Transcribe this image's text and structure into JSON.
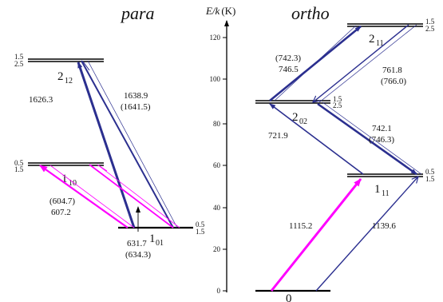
{
  "titles": {
    "para": "para",
    "ortho": "ortho"
  },
  "axis": {
    "label_main": "E/k",
    "label_unit": "(K)",
    "ticks": [
      "0",
      "20",
      "40",
      "60",
      "80",
      "100",
      "120"
    ]
  },
  "levels": {
    "para_101": {
      "main": "1",
      "sub": "01",
      "fine_top": "0.5",
      "fine_bottom": "1.5"
    },
    "para_110": {
      "main": "1",
      "sub": "10",
      "fine_top": "0.5",
      "fine_bottom": "1.5"
    },
    "para_212": {
      "main": "2",
      "sub": "12",
      "fine_top": "1.5",
      "fine_bottom": "2.5"
    },
    "ortho_000": {
      "main": "0"
    },
    "ortho_111": {
      "main": "1",
      "sub": "11",
      "fine_top": "0.5",
      "fine_bottom": "1.5"
    },
    "ortho_202": {
      "main": "2",
      "sub": "02",
      "fine_top": "1.5",
      "fine_bottom": "2.5"
    },
    "ortho_211": {
      "main": "2",
      "sub": "11",
      "fine_top": "1.5",
      "fine_bottom": "2.5"
    }
  },
  "transitions": {
    "t1626": {
      "l1": "1626.3"
    },
    "t1638": {
      "l1": "1638.9",
      "l2": "(1641.5)"
    },
    "t604": {
      "l1": "(604.7)",
      "l2": "607.2"
    },
    "t631": {
      "l1": "631.7",
      "l2": "(634.3)"
    },
    "t742a": {
      "l1": "(742.3)",
      "l2": "746.5"
    },
    "t761": {
      "l1": "761.8",
      "l2": "(766.0)"
    },
    "t721": {
      "l1": "721.9"
    },
    "t742b": {
      "l1": "742.1",
      "l2": "(746.3)"
    },
    "t1115": {
      "l1": "1115.2"
    },
    "t1139": {
      "l1": "1139.6"
    }
  },
  "colors": {
    "navy": "#2b2f8f",
    "magenta": "#ff00ff",
    "black": "#000000"
  }
}
